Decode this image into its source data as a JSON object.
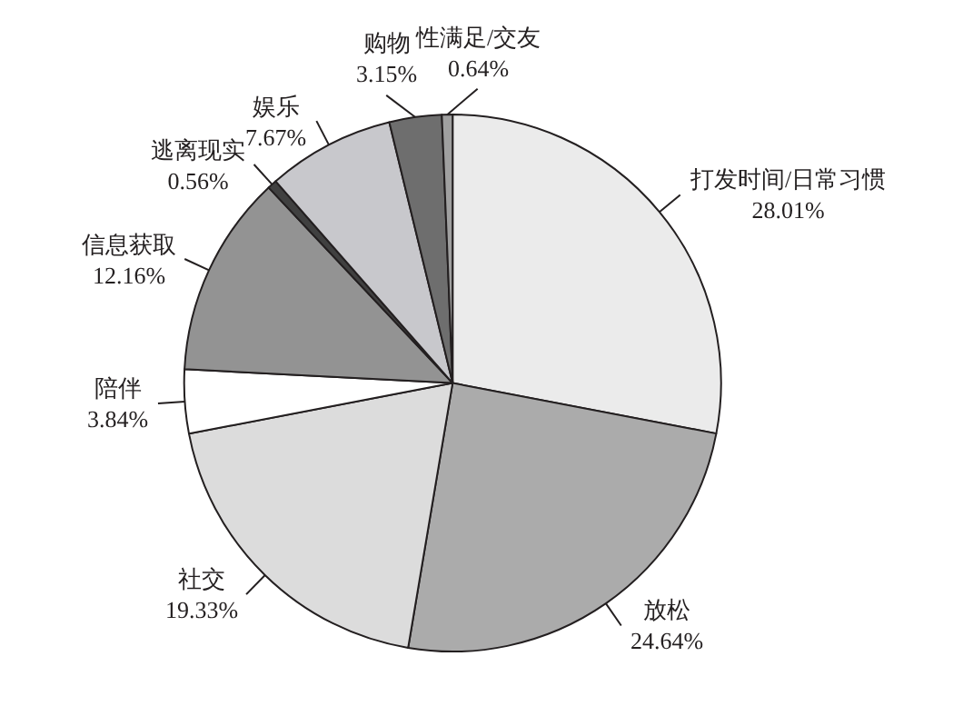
{
  "chart_data": {
    "type": "pie",
    "categories": [
      "打发时间/日常习惯",
      "放松",
      "社交",
      "陪伴",
      "信息获取",
      "逃离现实",
      "娱乐",
      "购物",
      "性满足/交友"
    ],
    "values": [
      28.01,
      24.64,
      19.33,
      3.84,
      12.16,
      0.56,
      7.67,
      3.15,
      0.64
    ],
    "value_labels": [
      "28.01%",
      "24.64%",
      "19.33%",
      "3.84%",
      "12.16%",
      "0.56%",
      "7.67%",
      "3.15%",
      "0.64%"
    ],
    "colors": [
      "#ebebeb",
      "#ababab",
      "#dcdcdc",
      "#ffffff",
      "#939393",
      "#404040",
      "#c8c8cc",
      "#6e6e6e",
      "#a0a0a0"
    ]
  }
}
